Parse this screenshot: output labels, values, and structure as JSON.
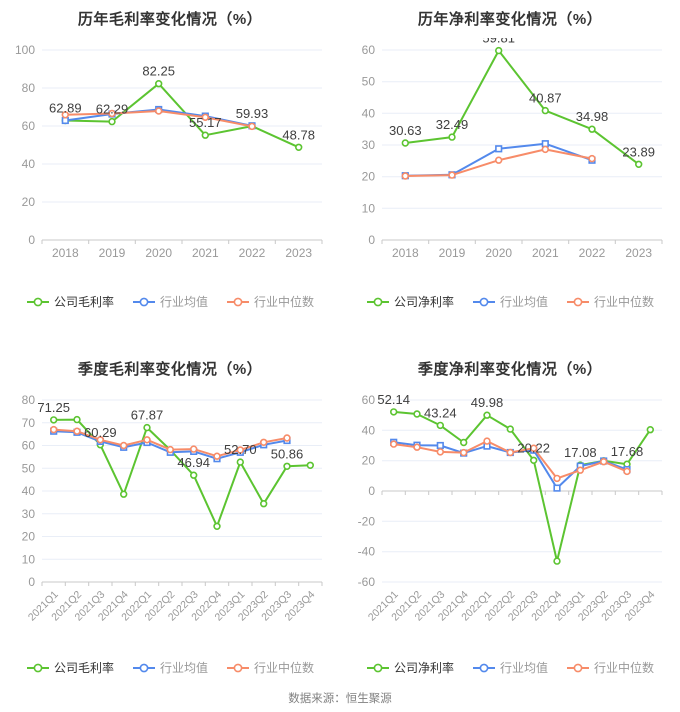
{
  "page": {
    "source_note": "数据来源：恒生聚源"
  },
  "colors": {
    "company_green": "#5cc431",
    "industry_mean_blue": "#5389ec",
    "industry_median_orange": "#f78c69",
    "grid": "#e9eef7",
    "axis": "#c8c8c8",
    "axis_text": "#999999",
    "label_text": "#404040",
    "title_text": "#333333"
  },
  "chart_data": [
    {
      "type": "line",
      "title": "历年毛利率变化情况（%）",
      "xlabel": "",
      "ylabel": "",
      "categories": [
        "2018",
        "2019",
        "2020",
        "2021",
        "2022",
        "2023"
      ],
      "ylim": [
        0,
        100
      ],
      "ystep": 20,
      "grid": true,
      "legend_position": "bottom",
      "x_label_rotate": 0,
      "series": [
        {
          "name": "公司毛利率",
          "color_key": "company_green",
          "marker": "circle",
          "values": [
            62.89,
            62.29,
            82.25,
            55.17,
            59.93,
            48.78
          ],
          "labels": [
            {
              "index": 0,
              "text": "62.89"
            },
            {
              "index": 1,
              "text": "62.29"
            },
            {
              "index": 2,
              "text": "82.25"
            },
            {
              "index": 3,
              "text": "55.17"
            },
            {
              "index": 4,
              "text": "59.93"
            },
            {
              "index": 5,
              "text": "48.78"
            }
          ]
        },
        {
          "name": "行业均值",
          "color_key": "industry_mean_blue",
          "marker": "square",
          "values": [
            62.9,
            66.3,
            68.7,
            65.2,
            60.1,
            null
          ]
        },
        {
          "name": "行业中位数",
          "color_key": "industry_median_orange",
          "marker": "circle",
          "values": [
            65.9,
            66.6,
            67.9,
            64.6,
            59.8,
            null
          ]
        }
      ]
    },
    {
      "type": "line",
      "title": "历年净利率变化情况（%）",
      "xlabel": "",
      "ylabel": "",
      "categories": [
        "2018",
        "2019",
        "2020",
        "2021",
        "2022",
        "2023"
      ],
      "ylim": [
        0,
        60
      ],
      "ystep": 10,
      "grid": true,
      "legend_position": "bottom",
      "x_label_rotate": 0,
      "series": [
        {
          "name": "公司净利率",
          "color_key": "company_green",
          "marker": "circle",
          "values": [
            30.63,
            32.49,
            59.81,
            40.87,
            34.98,
            23.89
          ],
          "labels": [
            {
              "index": 0,
              "text": "30.63"
            },
            {
              "index": 1,
              "text": "32.49"
            },
            {
              "index": 2,
              "text": "59.81"
            },
            {
              "index": 3,
              "text": "40.87"
            },
            {
              "index": 4,
              "text": "34.98"
            },
            {
              "index": 5,
              "text": "23.89"
            }
          ]
        },
        {
          "name": "行业均值",
          "color_key": "industry_mean_blue",
          "marker": "square",
          "values": [
            20.3,
            20.6,
            28.8,
            30.4,
            25.2,
            null
          ]
        },
        {
          "name": "行业中位数",
          "color_key": "industry_median_orange",
          "marker": "circle",
          "values": [
            20.2,
            20.5,
            25.2,
            28.6,
            25.7,
            null
          ]
        }
      ]
    },
    {
      "type": "line",
      "title": "季度毛利率变化情况（%）",
      "xlabel": "",
      "ylabel": "",
      "categories": [
        "2021Q1",
        "2021Q2",
        "2021Q3",
        "2021Q4",
        "2022Q1",
        "2022Q2",
        "2022Q3",
        "2022Q4",
        "2023Q1",
        "2023Q2",
        "2023Q3",
        "2023Q4"
      ],
      "ylim": [
        0,
        80
      ],
      "ystep": 10,
      "grid": true,
      "legend_position": "bottom",
      "x_label_rotate": 45,
      "series": [
        {
          "name": "公司毛利率",
          "color_key": "company_green",
          "marker": "circle",
          "values": [
            71.25,
            71.4,
            60.29,
            38.6,
            67.87,
            58.0,
            46.94,
            24.5,
            52.7,
            34.4,
            50.86,
            51.3
          ],
          "labels": [
            {
              "index": 0,
              "text": "71.25"
            },
            {
              "index": 2,
              "text": "60.29"
            },
            {
              "index": 4,
              "text": "67.87"
            },
            {
              "index": 6,
              "text": "46.94"
            },
            {
              "index": 8,
              "text": "52.70"
            },
            {
              "index": 10,
              "text": "50.86"
            }
          ]
        },
        {
          "name": "行业均值",
          "color_key": "industry_mean_blue",
          "marker": "square",
          "values": [
            66.3,
            65.8,
            61.8,
            59.2,
            61.3,
            57.0,
            57.4,
            54.2,
            57.0,
            60.3,
            62.2,
            null
          ]
        },
        {
          "name": "行业中位数",
          "color_key": "industry_median_orange",
          "marker": "circle",
          "values": [
            67.0,
            66.3,
            62.5,
            60.0,
            62.5,
            58.2,
            58.4,
            55.3,
            58.0,
            61.4,
            63.3,
            null
          ]
        }
      ]
    },
    {
      "type": "line",
      "title": "季度净利率变化情况（%）",
      "xlabel": "",
      "ylabel": "",
      "categories": [
        "2021Q1",
        "2021Q2",
        "2021Q3",
        "2021Q4",
        "2022Q1",
        "2022Q2",
        "2022Q3",
        "2022Q4",
        "2023Q1",
        "2023Q2",
        "2023Q3",
        "2023Q4"
      ],
      "ylim": [
        -60,
        60
      ],
      "ystep": 20,
      "grid": true,
      "legend_position": "bottom",
      "x_label_rotate": 45,
      "series": [
        {
          "name": "公司净利率",
          "color_key": "company_green",
          "marker": "circle",
          "values": [
            52.14,
            50.8,
            43.24,
            32.0,
            49.98,
            40.8,
            20.22,
            -46.2,
            17.08,
            19.9,
            17.68,
            40.4
          ],
          "labels": [
            {
              "index": 0,
              "text": "52.14"
            },
            {
              "index": 2,
              "text": "43.24"
            },
            {
              "index": 4,
              "text": "49.98"
            },
            {
              "index": 6,
              "text": "20.22"
            },
            {
              "index": 8,
              "text": "17.08"
            },
            {
              "index": 10,
              "text": "17.68"
            }
          ]
        },
        {
          "name": "行业均值",
          "color_key": "industry_mean_blue",
          "marker": "square",
          "values": [
            32.1,
            30.2,
            30.0,
            25.0,
            29.6,
            25.4,
            26.9,
            1.9,
            16.4,
            19.8,
            14.1,
            null
          ]
        },
        {
          "name": "行业中位数",
          "color_key": "industry_median_orange",
          "marker": "circle",
          "values": [
            30.9,
            28.9,
            25.8,
            25.3,
            32.9,
            25.4,
            28.2,
            8.3,
            13.7,
            19.3,
            12.9,
            null
          ]
        }
      ]
    }
  ]
}
